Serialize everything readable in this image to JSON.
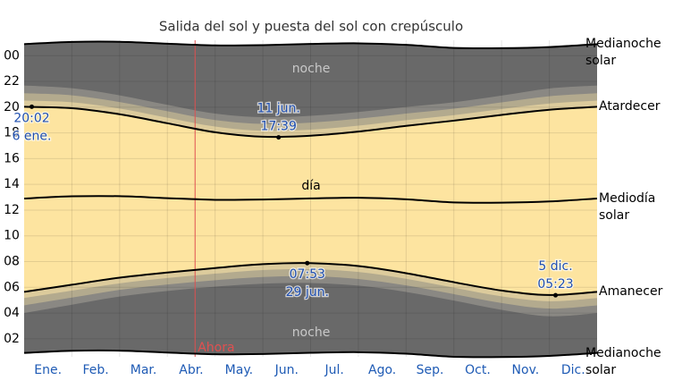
{
  "chart_data": {
    "type": "daylight",
    "title": "Salida del sol y puesta del sol con crepúsculo",
    "x": [
      0,
      1,
      2,
      3,
      4,
      5,
      6,
      7,
      8,
      9,
      10,
      11,
      12
    ],
    "xlim": [
      0,
      12
    ],
    "xticks": [
      {
        "value": 0.5,
        "label": "Ene."
      },
      {
        "value": 1.5,
        "label": "Feb."
      },
      {
        "value": 2.5,
        "label": "Mar."
      },
      {
        "value": 3.5,
        "label": "Abr."
      },
      {
        "value": 4.5,
        "label": "May."
      },
      {
        "value": 5.5,
        "label": "Jun."
      },
      {
        "value": 6.5,
        "label": "Jul."
      },
      {
        "value": 7.5,
        "label": "Ago."
      },
      {
        "value": 8.5,
        "label": "Sep."
      },
      {
        "value": 9.5,
        "label": "Oct."
      },
      {
        "value": 10.5,
        "label": "Nov."
      },
      {
        "value": 11.5,
        "label": "Dic."
      }
    ],
    "xgrid": [
      1,
      2,
      3,
      4,
      5,
      6,
      7,
      8,
      9,
      10,
      11
    ],
    "ylim": [
      0.6,
      25.2
    ],
    "yticks": [
      {
        "value": 24,
        "label": "00"
      },
      22,
      20,
      18,
      16,
      14,
      12,
      10,
      {
        "value": 8,
        "label": "08"
      },
      {
        "value": 6,
        "label": "06"
      },
      {
        "value": 4,
        "label": "04"
      },
      {
        "value": 2,
        "label": "02"
      }
    ],
    "grid": true,
    "night_color": "#696969",
    "day_color": "#fde4a0",
    "series": [
      {
        "name": "Medianoche solar",
        "color": "#000000",
        "values": [
          24.9,
          25.07,
          25.08,
          24.93,
          24.8,
          24.82,
          24.91,
          24.96,
          24.84,
          24.6,
          24.58,
          24.67,
          24.9
        ]
      },
      {
        "name": "Atardecer",
        "color": "#000000",
        "values": [
          20.03,
          19.92,
          19.45,
          18.75,
          18.05,
          17.7,
          17.78,
          18.1,
          18.55,
          18.95,
          19.4,
          19.8,
          20.03
        ]
      },
      {
        "name": "Mediodía solar",
        "color": "#000000",
        "values": [
          12.9,
          13.07,
          13.08,
          12.93,
          12.8,
          12.82,
          12.91,
          12.96,
          12.84,
          12.6,
          12.58,
          12.67,
          12.9
        ]
      },
      {
        "name": "Amanecer",
        "color": "#000000",
        "values": [
          5.65,
          6.2,
          6.75,
          7.15,
          7.5,
          7.8,
          7.88,
          7.65,
          7.1,
          6.4,
          5.75,
          5.4,
          5.65
        ]
      },
      {
        "name": "Medianoche solar",
        "color": "#000000",
        "values": [
          0.9,
          1.07,
          1.08,
          0.93,
          0.8,
          0.82,
          0.91,
          0.96,
          0.84,
          0.6,
          0.58,
          0.67,
          0.9
        ]
      }
    ],
    "twilight": [
      {
        "color": "#8a8883",
        "dawn": [
          4.0,
          4.65,
          5.28,
          5.72,
          6.05,
          6.28,
          6.33,
          6.13,
          5.64,
          4.97,
          4.25,
          3.75,
          4.0
        ],
        "dusk": [
          21.68,
          21.47,
          20.92,
          20.18,
          19.5,
          19.22,
          19.33,
          19.62,
          20.01,
          20.38,
          20.9,
          21.45,
          21.68
        ]
      },
      {
        "color": "#b3aa8e",
        "dawn": [
          4.6,
          5.2,
          5.8,
          6.22,
          6.55,
          6.8,
          6.86,
          6.65,
          6.15,
          5.47,
          4.78,
          4.35,
          4.6
        ],
        "dusk": [
          21.08,
          20.92,
          20.4,
          19.68,
          19.0,
          18.7,
          18.8,
          19.1,
          19.5,
          19.88,
          20.37,
          20.85,
          21.08
        ]
      },
      {
        "color": "#dccb9c",
        "dawn": [
          5.17,
          5.74,
          6.31,
          6.72,
          7.06,
          7.34,
          7.41,
          7.19,
          6.66,
          5.97,
          5.3,
          4.92,
          5.17
        ],
        "dusk": [
          20.51,
          20.38,
          19.89,
          19.18,
          18.49,
          18.16,
          18.25,
          18.56,
          18.99,
          19.38,
          19.85,
          20.28,
          20.51
        ]
      }
    ],
    "labels": [
      "noche",
      "día",
      "noche"
    ],
    "annotations": [
      {
        "x": 0.16,
        "value": 20.033,
        "lines": [
          "20:02",
          "6 ene."
        ],
        "placement": "below"
      },
      {
        "x": 5.33,
        "value": 17.65,
        "lines": [
          "11 jun.",
          "17:39"
        ],
        "placement": "above"
      },
      {
        "x": 5.93,
        "value": 7.883,
        "lines": [
          "07:53",
          "29 jun."
        ],
        "placement": "below"
      },
      {
        "x": 11.13,
        "value": 5.383,
        "lines": [
          "5 dic.",
          "05:23"
        ],
        "placement": "above"
      }
    ],
    "now": {
      "x": 3.58,
      "label": "Ahora",
      "color": "#e05050"
    }
  }
}
